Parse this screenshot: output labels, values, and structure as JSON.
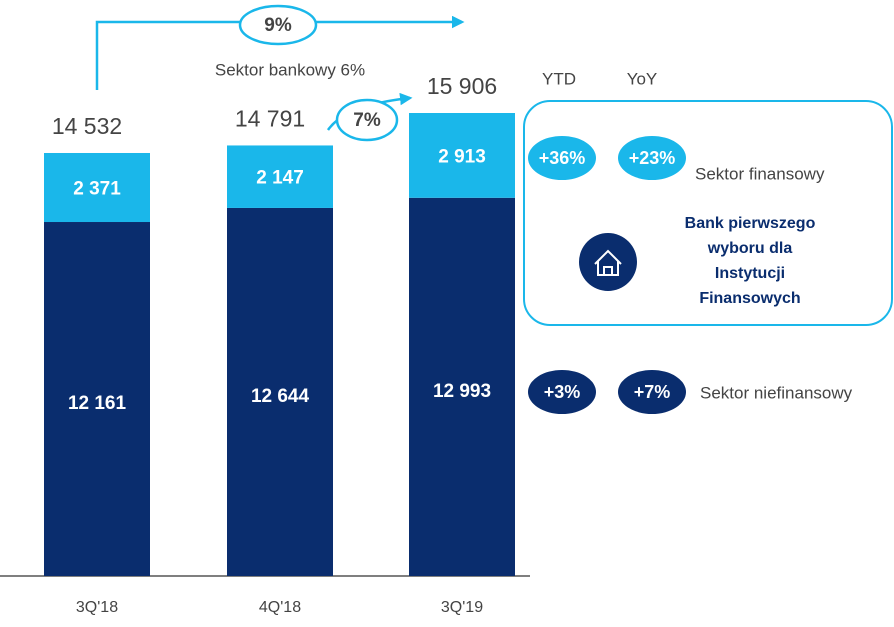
{
  "chart_data": {
    "type": "bar",
    "stacked": true,
    "categories": [
      "3Q'18",
      "4Q'18",
      "3Q'19"
    ],
    "series": [
      {
        "name": "Sektor niefinansowy",
        "color": "#0a2d6e",
        "values": [
          12161,
          12644,
          12993
        ],
        "value_labels": [
          "12 161",
          "12 644",
          "12 993"
        ],
        "ytd": "+3%",
        "yoy": "+7%"
      },
      {
        "name": "Sektor finansowy",
        "color": "#1ab7ea",
        "values": [
          2371,
          2147,
          2913
        ],
        "value_labels": [
          "2 371",
          "2 147",
          "2 913"
        ],
        "ytd": "+36%",
        "yoy": "+23%"
      }
    ],
    "totals": [
      14532,
      14791,
      15906
    ],
    "total_labels": [
      "14 532",
      "14 791",
      "15 906"
    ],
    "growth_total": "9%",
    "growth_sector": "Sektor bankowy 6%",
    "growth_quarter": "7%",
    "column_headers": [
      "YTD",
      "YoY"
    ],
    "callout": [
      "Bank pierwszego",
      "wyboru dla",
      "Instytucji",
      "Finansowych"
    ]
  }
}
